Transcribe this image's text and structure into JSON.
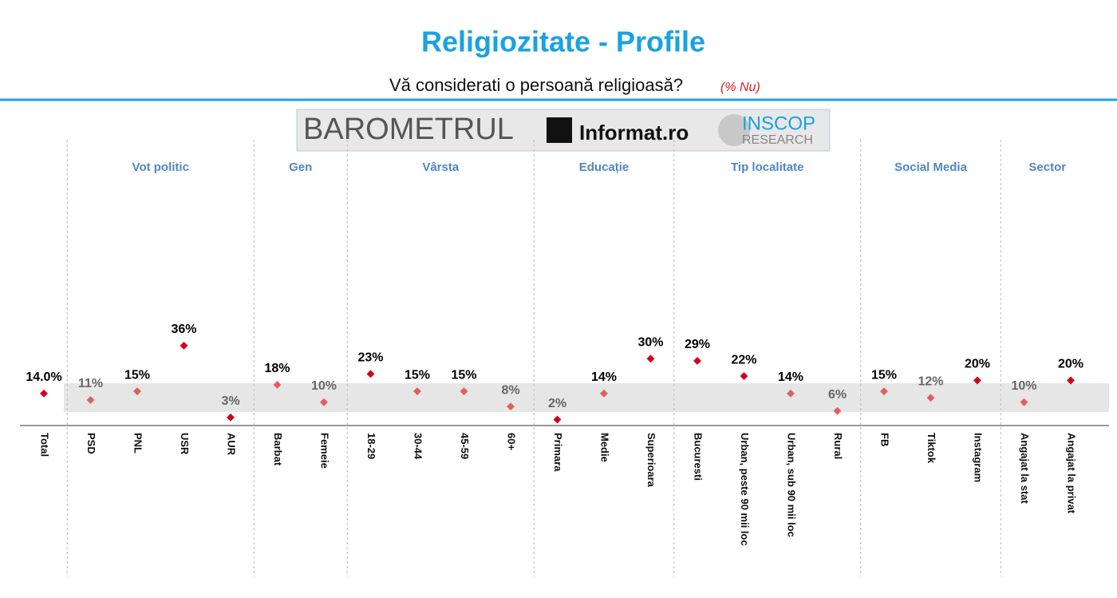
{
  "chart_data": {
    "type": "dot",
    "title": "Religiozitate - Profile",
    "subtitle": "Vă considerati o persoană religioasă?",
    "subtitle_note": "(% Nu)",
    "logo": {
      "left": "BAROMETRUL",
      "middle": "Informat.ro",
      "right_top": "INSCOP",
      "right_bottom": "RESEARCH"
    },
    "ylim": [
      0,
      40
    ],
    "band": [
      5.5,
      18.7
    ],
    "groups": [
      {
        "name": null,
        "categories": [
          "Total"
        ],
        "values": [
          14
        ],
        "value_labels": [
          "14.0%"
        ],
        "colors": [
          "#d0021b"
        ],
        "label_colors": [
          "#000000"
        ]
      },
      {
        "name": "Vot politic",
        "categories": [
          "PSD",
          "PNL",
          "USR",
          "AUR"
        ],
        "values": [
          11,
          15,
          36,
          3
        ],
        "value_labels": [
          "11%",
          "15%",
          "36%",
          "3%"
        ],
        "colors": [
          "#e06060",
          "#e06060",
          "#d0021b",
          "#d0021b"
        ],
        "label_colors": [
          "#666666",
          "#000000",
          "#000000",
          "#666666"
        ]
      },
      {
        "name": "Gen",
        "categories": [
          "Barbat",
          "Femeie"
        ],
        "values": [
          18,
          10
        ],
        "value_labels": [
          "18%",
          "10%"
        ],
        "colors": [
          "#e06060",
          "#e06060"
        ],
        "label_colors": [
          "#000000",
          "#666666"
        ]
      },
      {
        "name": "Vârsta",
        "categories": [
          "18-29",
          "30-44",
          "45-59",
          "60+"
        ],
        "values": [
          23,
          15,
          15,
          8
        ],
        "value_labels": [
          "23%",
          "15%",
          "15%",
          "8%"
        ],
        "colors": [
          "#d0021b",
          "#e06060",
          "#e06060",
          "#e06060"
        ],
        "label_colors": [
          "#000000",
          "#000000",
          "#000000",
          "#666666"
        ]
      },
      {
        "name": "Educație",
        "categories": [
          "Primara",
          "Medie",
          "Superioara"
        ],
        "values": [
          2,
          14,
          30
        ],
        "value_labels": [
          "2%",
          "14%",
          "30%"
        ],
        "colors": [
          "#d0021b",
          "#e06060",
          "#d0021b"
        ],
        "label_colors": [
          "#666666",
          "#000000",
          "#000000"
        ]
      },
      {
        "name": "Tip localitate",
        "categories": [
          "Bucuresti",
          "Urban, peste 90 mii loc",
          "Urban, sub 90 mii loc",
          "Rural"
        ],
        "values": [
          29,
          22,
          14,
          6
        ],
        "value_labels": [
          "29%",
          "22%",
          "14%",
          "6%"
        ],
        "colors": [
          "#d0021b",
          "#d0021b",
          "#e06060",
          "#e06060"
        ],
        "label_colors": [
          "#000000",
          "#000000",
          "#000000",
          "#666666"
        ]
      },
      {
        "name": "Social Media",
        "categories": [
          "FB",
          "Tiktok",
          "Instagram"
        ],
        "values": [
          15,
          12,
          20
        ],
        "value_labels": [
          "15%",
          "12%",
          "20%"
        ],
        "colors": [
          "#e06060",
          "#e06060",
          "#d0021b"
        ],
        "label_colors": [
          "#000000",
          "#666666",
          "#000000"
        ]
      },
      {
        "name": "Sector",
        "categories": [
          "Angajat la stat",
          "Angajat la privat"
        ],
        "values": [
          10,
          20
        ],
        "value_labels": [
          "10%",
          "20%"
        ],
        "colors": [
          "#e06060",
          "#d0021b"
        ],
        "label_colors": [
          "#666666",
          "#000000"
        ]
      }
    ]
  }
}
